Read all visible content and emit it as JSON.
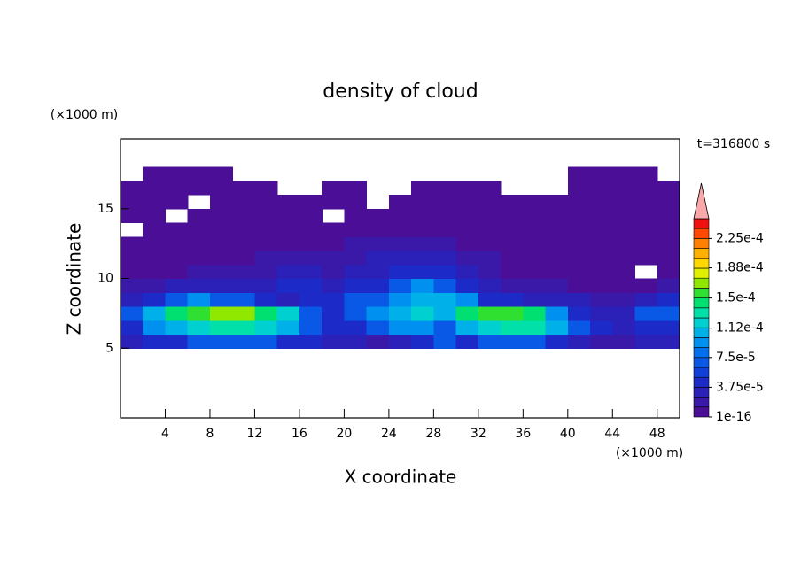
{
  "chart_data": {
    "type": "contour",
    "title": "density of cloud",
    "x_label": "X coordinate",
    "y_label": "Z coordinate",
    "x_unit_label": "(×1000 m)",
    "y_unit_label": "(×1000 m)",
    "time_label": "t=316800 s",
    "xlim": [
      0,
      50
    ],
    "ylim": [
      0,
      20
    ],
    "xticks": [
      4,
      8,
      12,
      16,
      20,
      24,
      28,
      32,
      36,
      40,
      44,
      48
    ],
    "yticks": [
      5,
      10,
      15
    ],
    "x": [
      1,
      3,
      5,
      7,
      9,
      11,
      13,
      15,
      17,
      19,
      21,
      23,
      25,
      27,
      29,
      31,
      33,
      35,
      37,
      39,
      41,
      43,
      45,
      47,
      49
    ],
    "y": [
      5.5,
      6.5,
      7.5,
      8.5,
      9.5,
      10.5,
      11.5,
      12.5,
      13.5,
      14.5,
      15.5,
      16.5,
      17.5
    ],
    "field": [
      [
        3e-05,
        5e-05,
        5e-05,
        7e-05,
        7e-05,
        7e-05,
        7e-05,
        5e-05,
        5e-05,
        3e-05,
        3e-05,
        2e-05,
        3e-05,
        5e-05,
        7e-05,
        5e-05,
        7e-05,
        7e-05,
        7e-05,
        5e-05,
        3e-05,
        2e-05,
        2e-05,
        3e-05,
        3e-05
      ],
      [
        5e-05,
        9e-05,
        0.00011,
        0.00012,
        0.00013,
        0.00013,
        0.00012,
        0.00011,
        7e-05,
        5e-05,
        5e-05,
        7e-05,
        9e-05,
        9e-05,
        7e-05,
        0.00011,
        0.00012,
        0.00013,
        0.00013,
        0.00011,
        7e-05,
        5e-05,
        3e-05,
        5e-05,
        5e-05
      ],
      [
        7e-05,
        0.00011,
        0.00014,
        0.00016,
        0.00017,
        0.00017,
        0.00015,
        0.00012,
        7e-05,
        5e-05,
        7e-05,
        9e-05,
        0.00011,
        0.00012,
        0.00011,
        0.00014,
        0.00016,
        0.00016,
        0.00014,
        9e-05,
        5e-05,
        3e-05,
        3e-05,
        7e-05,
        7e-05
      ],
      [
        3e-05,
        5e-05,
        7e-05,
        9e-05,
        7e-05,
        7e-05,
        5e-05,
        3e-05,
        5e-05,
        5e-05,
        7e-05,
        7e-05,
        9e-05,
        0.00011,
        0.00011,
        9e-05,
        5e-05,
        5e-05,
        3e-05,
        3e-05,
        3e-05,
        2e-05,
        2e-05,
        3e-05,
        5e-05
      ],
      [
        2e-05,
        2e-05,
        3e-05,
        3e-05,
        3e-05,
        3e-05,
        3e-05,
        5e-05,
        5e-05,
        3e-05,
        5e-05,
        5e-05,
        7e-05,
        9e-05,
        7e-05,
        5e-05,
        3e-05,
        2e-05,
        2e-05,
        2e-05,
        1e-05,
        1e-05,
        1e-05,
        1e-05,
        2e-05
      ],
      [
        1e-05,
        1e-05,
        1e-05,
        2e-05,
        2e-05,
        2e-05,
        2e-05,
        3e-05,
        3e-05,
        2e-05,
        3e-05,
        3e-05,
        5e-05,
        5e-05,
        5e-05,
        3e-05,
        2e-05,
        1e-05,
        1e-05,
        1e-05,
        1e-05,
        1e-05,
        1e-05,
        null,
        1e-05
      ],
      [
        1e-16,
        1e-05,
        1e-05,
        1e-05,
        1e-05,
        1e-05,
        2e-05,
        2e-05,
        2e-05,
        2e-05,
        2e-05,
        3e-05,
        3e-05,
        3e-05,
        3e-05,
        2e-05,
        2e-05,
        1e-05,
        1e-05,
        1e-05,
        1e-05,
        1e-05,
        1e-05,
        1e-05,
        1e-16
      ],
      [
        1e-16,
        1e-16,
        1e-05,
        1e-05,
        1e-05,
        1e-05,
        1e-05,
        1e-05,
        1e-05,
        1e-05,
        2e-05,
        2e-05,
        2e-05,
        2e-05,
        2e-05,
        1e-05,
        1e-05,
        1e-05,
        1e-05,
        1e-05,
        1e-05,
        1e-16,
        1e-16,
        1e-16,
        1e-16
      ],
      [
        null,
        1e-16,
        1e-16,
        1e-16,
        1e-16,
        1e-05,
        1e-05,
        1e-05,
        1e-16,
        1e-16,
        1e-05,
        1e-05,
        1e-05,
        1e-05,
        1e-05,
        1e-05,
        1e-05,
        1e-05,
        1e-05,
        1e-16,
        1e-16,
        1e-16,
        1e-16,
        1e-16,
        1e-16
      ],
      [
        1e-16,
        1e-16,
        null,
        1e-16,
        1e-16,
        1e-16,
        1e-16,
        1e-16,
        1e-16,
        null,
        1e-16,
        1e-16,
        1e-16,
        1e-05,
        1e-05,
        1e-05,
        1e-05,
        1e-05,
        1e-16,
        1e-16,
        1e-16,
        1e-16,
        1e-16,
        1e-16,
        1e-16
      ],
      [
        1e-16,
        1e-16,
        1e-16,
        null,
        1e-16,
        1e-16,
        1e-16,
        1e-16,
        1e-16,
        1e-16,
        1e-16,
        null,
        1e-16,
        1e-16,
        1e-16,
        1e-16,
        1e-16,
        1e-16,
        1e-16,
        1e-16,
        1e-16,
        1e-16,
        1e-16,
        1e-16,
        1e-16
      ],
      [
        1e-16,
        1e-16,
        1e-16,
        1e-16,
        1e-16,
        1e-16,
        1e-16,
        null,
        null,
        1e-16,
        1e-16,
        null,
        null,
        1e-16,
        1e-16,
        1e-16,
        1e-16,
        null,
        null,
        null,
        1e-16,
        1e-16,
        1e-16,
        1e-16,
        1e-16
      ],
      [
        null,
        1e-16,
        1e-16,
        1e-16,
        1e-16,
        null,
        null,
        null,
        null,
        null,
        null,
        null,
        null,
        null,
        null,
        null,
        null,
        null,
        null,
        null,
        1e-16,
        1e-16,
        1e-16,
        1e-16,
        null
      ]
    ],
    "colorbar": {
      "lim": [
        1e-16,
        0.00025
      ],
      "extend_color": "#f8a8a8",
      "colors": [
        "#4a0f96",
        "#3a18a8",
        "#2b20b8",
        "#1c2ac8",
        "#1040d8",
        "#0a58e6",
        "#0070f0",
        "#0090f0",
        "#00b0e8",
        "#00d0d0",
        "#00e0a8",
        "#00e070",
        "#30e030",
        "#90e800",
        "#e0f000",
        "#ffd800",
        "#ffb000",
        "#ff8000",
        "#ff4800",
        "#f01010"
      ],
      "ticks": [
        {
          "value": 1e-16,
          "label": "1e-16"
        },
        {
          "value": 3.75e-05,
          "label": "3.75e-5"
        },
        {
          "value": 7.5e-05,
          "label": "7.5e-5"
        },
        {
          "value": 0.000112,
          "label": "1.12e-4"
        },
        {
          "value": 0.00015,
          "label": "1.5e-4"
        },
        {
          "value": 0.000188,
          "label": "1.88e-4"
        },
        {
          "value": 0.000225,
          "label": "2.25e-4"
        }
      ]
    }
  }
}
